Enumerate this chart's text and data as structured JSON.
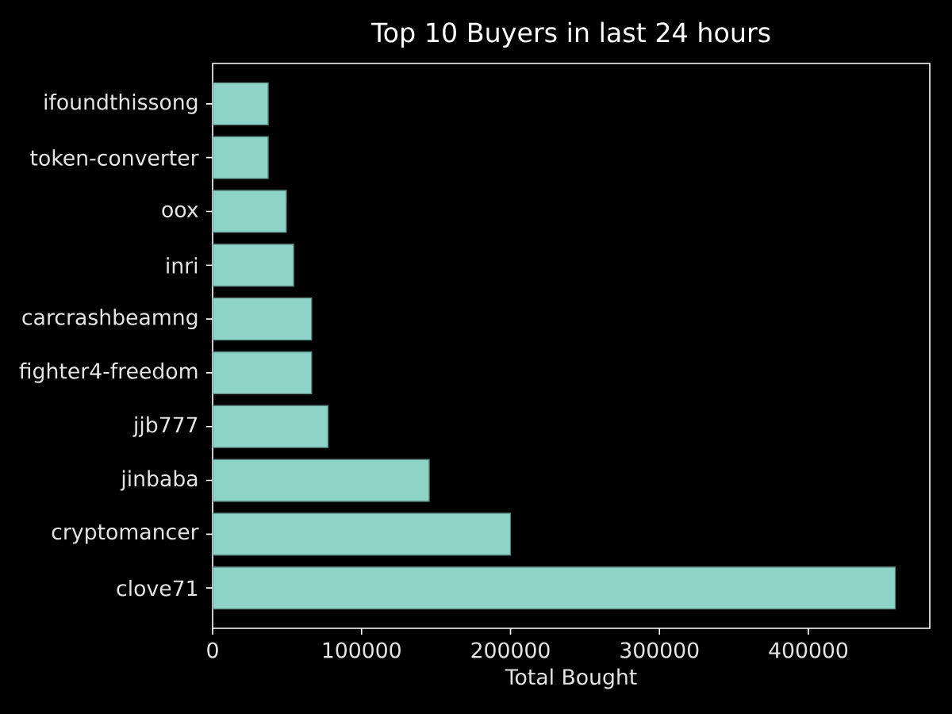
{
  "chart_data": {
    "type": "bar",
    "orientation": "horizontal",
    "title": "Top 10 Buyers in last 24 hours",
    "xlabel": "Total Bought",
    "categories": [
      "ifoundthissong",
      "token-converter",
      "oox",
      "inri",
      "carcrashbeamng",
      "fighter4-freedom",
      "jjb777",
      "jinbaba",
      "cryptomancer",
      "clove71"
    ],
    "values": [
      37300,
      37300,
      49500,
      54400,
      66500,
      66500,
      77500,
      145400,
      200000,
      458400
    ],
    "color": "#8dd3c7",
    "xlim": [
      0,
      481500
    ],
    "xticks": [
      0,
      100000,
      200000,
      300000,
      400000
    ]
  }
}
